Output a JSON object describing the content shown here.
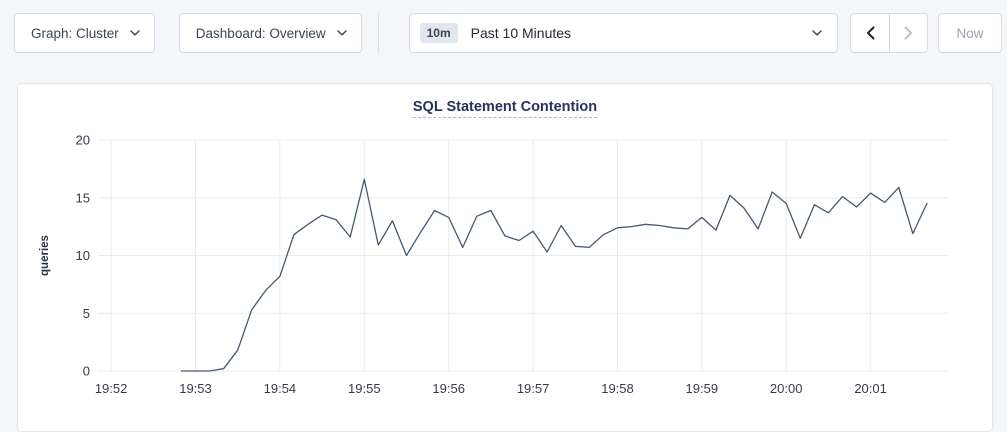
{
  "toolbar": {
    "graph_label": "Graph: Cluster",
    "dashboard_label": "Dashboard: Overview",
    "time_badge": "10m",
    "time_label": "Past 10 Minutes",
    "now_label": "Now"
  },
  "theme": {
    "page_bg": "#f4f6f9",
    "card_bg": "#ffffff",
    "card_border": "#e4e8ee",
    "button_border": "#d5dae3",
    "button_text": "#394455",
    "disabled_text": "#9aa3b1",
    "badge_bg": "#e1e6ef",
    "title_color": "#26335e",
    "line_color": "#475872"
  },
  "chart_data": {
    "type": "line",
    "title": "SQL Statement Contention",
    "ylabel": "queries",
    "xlabel": "",
    "ylim": [
      0,
      20
    ],
    "y_ticks": [
      0,
      5,
      10,
      15,
      20
    ],
    "x_tick_labels": [
      "19:52",
      "19:53",
      "19:54",
      "19:55",
      "19:56",
      "19:57",
      "19:58",
      "19:59",
      "20:00",
      "20:01"
    ],
    "x_tick_seconds": [
      0,
      60,
      120,
      180,
      240,
      300,
      360,
      420,
      480,
      540
    ],
    "x_domain_seconds": [
      -9.3,
      595
    ],
    "grid": true,
    "legend_position": "none",
    "series": [
      {
        "name": "SQL Statement Contention",
        "color": "#475872",
        "points_seconds": [
          50,
          60,
          70,
          80,
          90,
          100,
          110,
          120,
          130,
          140,
          150,
          160,
          170,
          180,
          190,
          200,
          210,
          220,
          230,
          240,
          250,
          260,
          270,
          280,
          290,
          300,
          310,
          320,
          330,
          340,
          350,
          360,
          370,
          380,
          390,
          400,
          410,
          420,
          430,
          440,
          450,
          460,
          470,
          480,
          490,
          500,
          510,
          520,
          530,
          540,
          550,
          560,
          570,
          580
        ],
        "values": [
          0,
          0,
          0,
          0.2,
          1.8,
          5.3,
          7.0,
          8.2,
          11.8,
          12.7,
          13.5,
          13.1,
          11.6,
          16.6,
          10.9,
          13.0,
          10.0,
          12.0,
          13.9,
          13.3,
          10.7,
          13.4,
          13.9,
          11.7,
          11.3,
          12.1,
          10.3,
          12.6,
          10.8,
          10.7,
          11.8,
          12.4,
          12.5,
          12.7,
          12.6,
          12.4,
          12.3,
          13.3,
          12.2,
          15.2,
          14.1,
          12.3,
          15.5,
          14.5,
          11.5,
          14.4,
          13.7,
          15.1,
          14.2,
          15.4,
          14.6,
          15.9,
          11.9,
          14.5
        ]
      }
    ],
    "colors": {
      "grid": "#ececec",
      "tick_label": "#353c49",
      "title_underline": "#a9b6d9"
    }
  }
}
